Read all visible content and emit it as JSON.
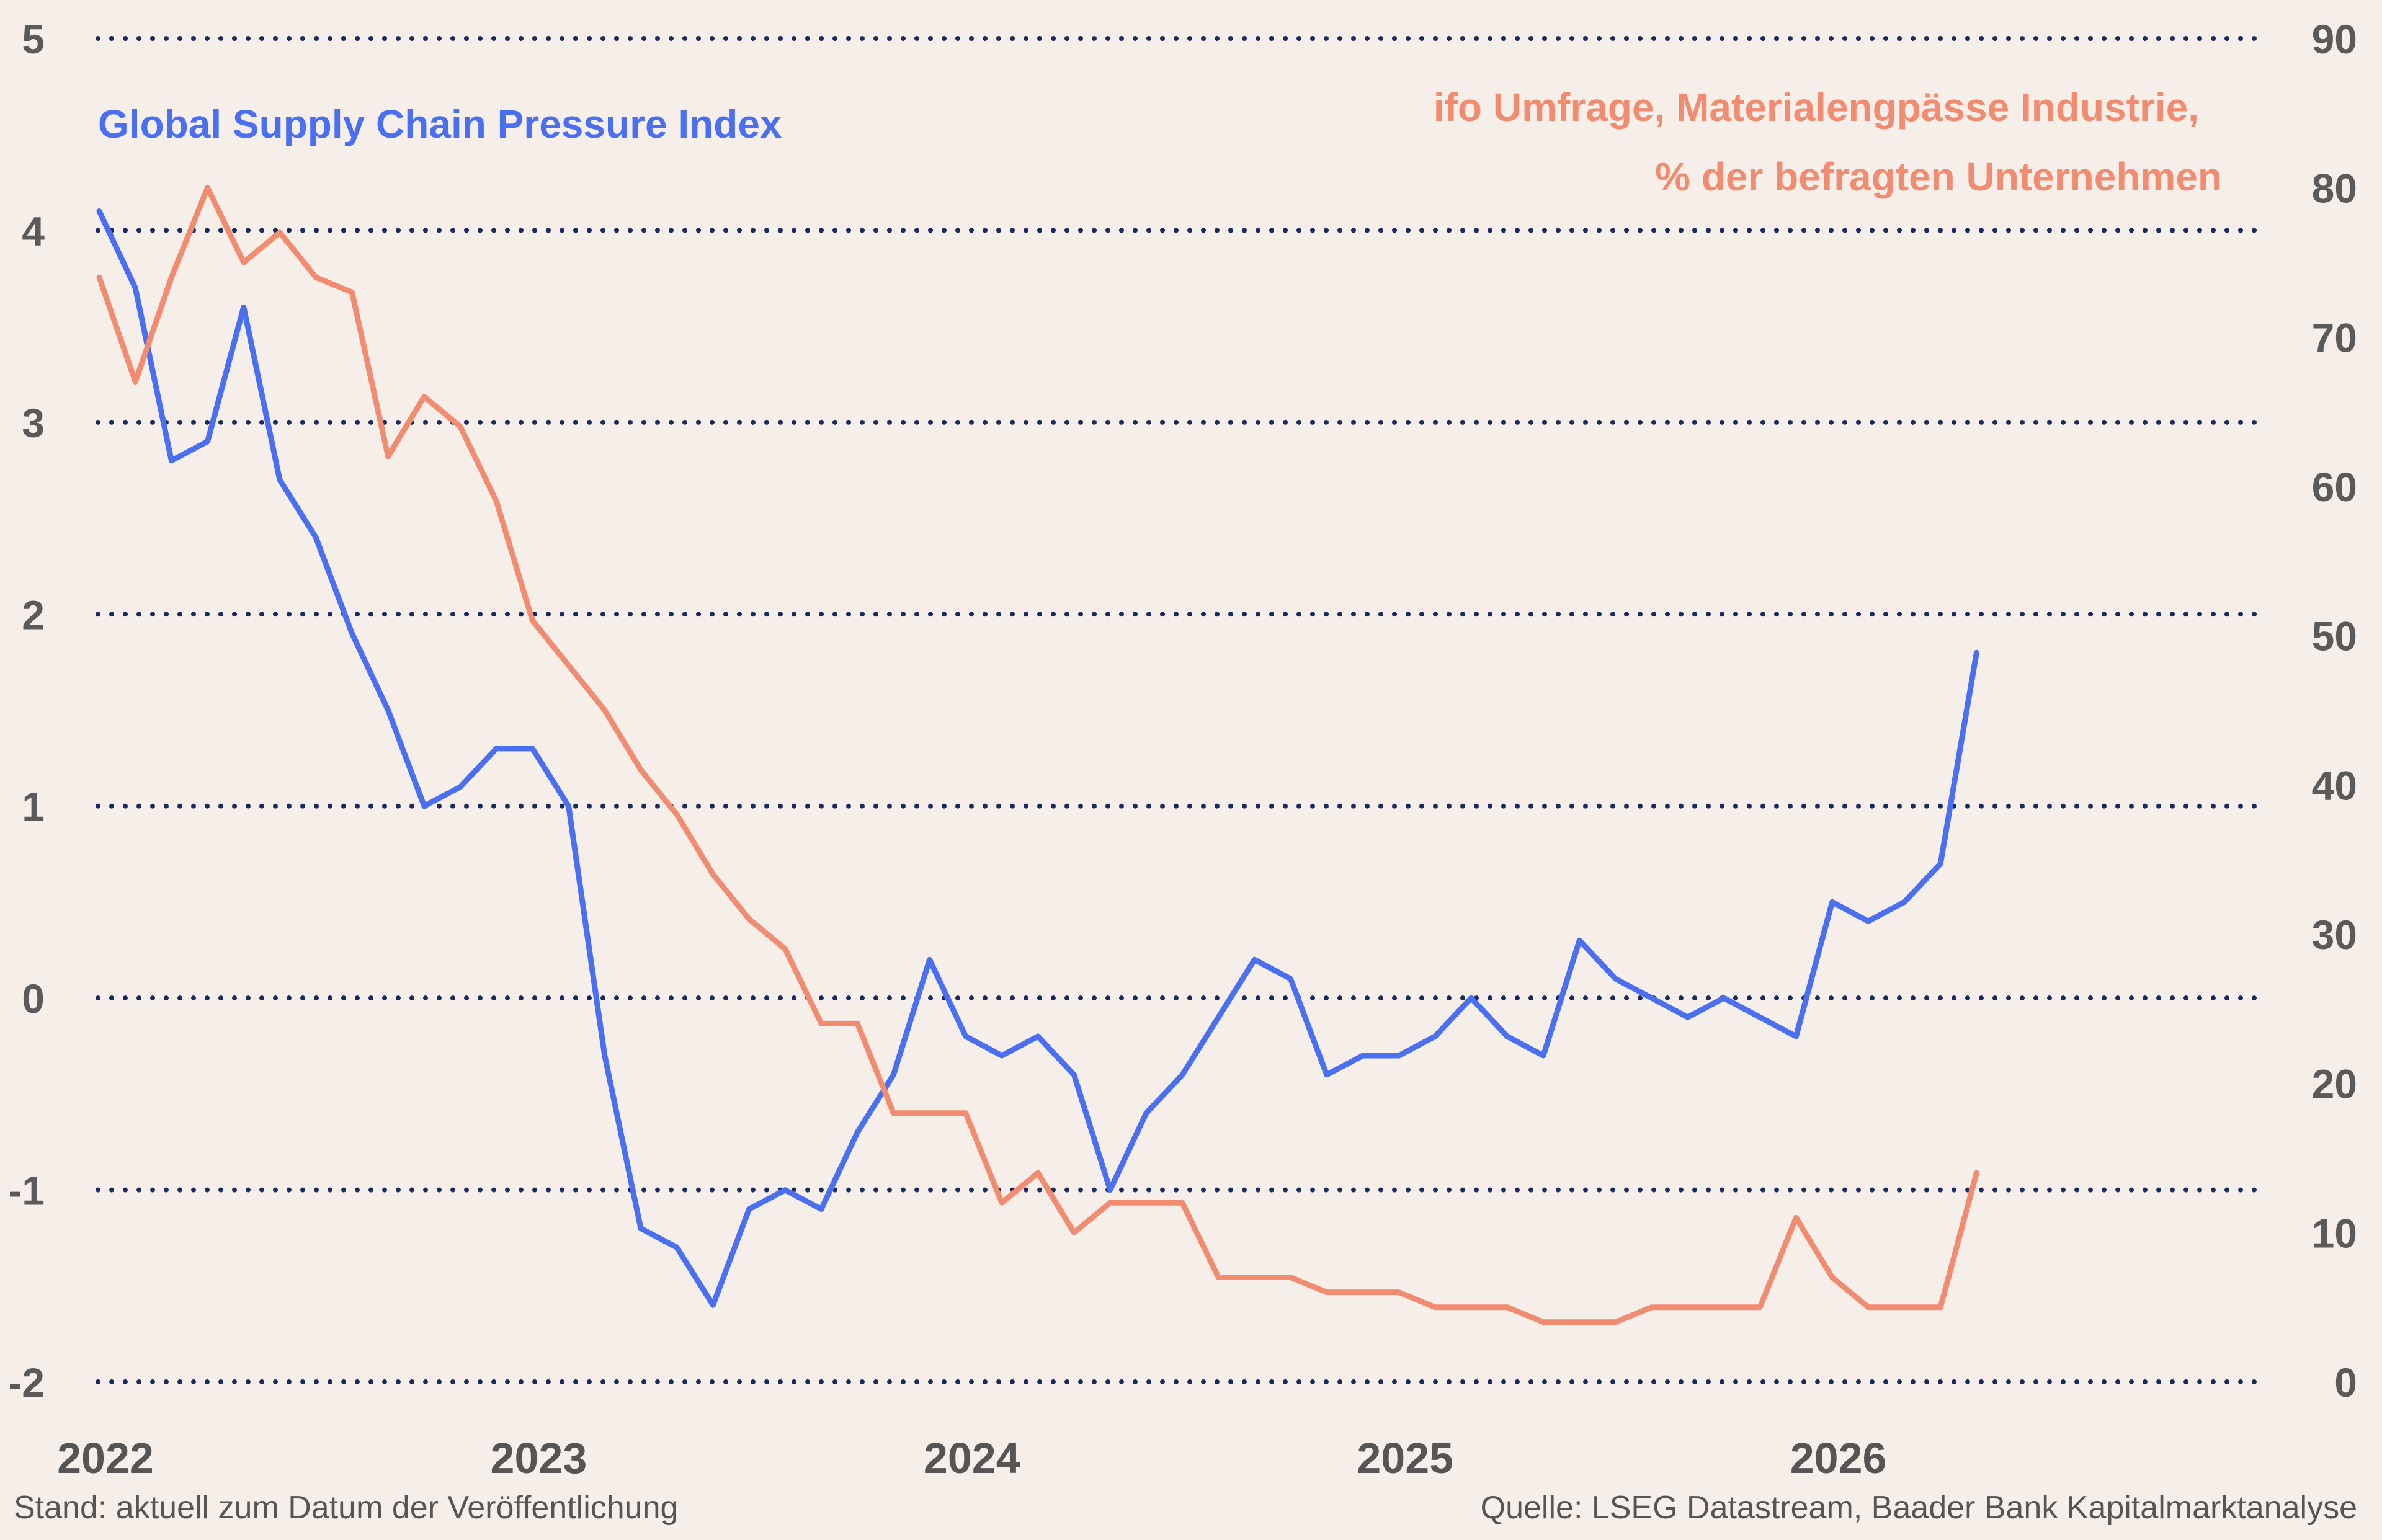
{
  "chart_data": {
    "type": "line",
    "x_start": "2022-01",
    "x_ticks": [
      "2022",
      "2023",
      "2024",
      "2025",
      "2026"
    ],
    "y_left": {
      "ticks": [
        "5",
        "4",
        "3",
        "2",
        "1",
        "0",
        "-1",
        "-2"
      ],
      "range": [
        -2,
        5
      ]
    },
    "y_right": {
      "ticks": [
        "90",
        "80",
        "70",
        "60",
        "50",
        "40",
        "30",
        "20",
        "10",
        "0"
      ],
      "range": [
        0,
        90
      ]
    },
    "grid": true,
    "series": [
      {
        "name": "Global Supply Chain Pressure Index",
        "axis": "left",
        "color": "#4a6ff0",
        "values": [
          4.1,
          3.7,
          2.8,
          2.9,
          3.6,
          2.7,
          2.4,
          1.9,
          1.5,
          1.0,
          1.1,
          1.3,
          1.3,
          1.0,
          -0.3,
          -1.2,
          -1.3,
          -1.6,
          -1.1,
          -1.0,
          -1.1,
          -0.7,
          -0.4,
          0.2,
          -0.2,
          -0.3,
          -0.2,
          -0.4,
          -1.0,
          -0.6,
          -0.4,
          -0.1,
          0.2,
          0.1,
          -0.4,
          -0.3,
          -0.3,
          -0.2,
          0.0,
          -0.2,
          -0.3,
          0.3,
          0.1,
          0.0,
          -0.1,
          0.0,
          -0.1,
          -0.2,
          0.5,
          0.4,
          0.5,
          0.7,
          1.8
        ]
      },
      {
        "name": "ifo Umfrage, Materialengpässe Industrie,\n% der befragten Unternehmen",
        "axis": "right",
        "color": "#f28c70",
        "values": [
          74,
          67,
          74,
          80,
          75,
          77,
          74,
          73,
          62,
          66,
          64,
          59,
          51,
          48,
          45,
          41,
          38,
          34,
          31,
          29,
          24,
          24,
          18,
          18,
          18,
          12,
          14,
          10,
          12,
          12,
          12,
          7,
          7,
          7,
          6,
          6,
          6,
          5,
          5,
          5,
          4,
          4,
          4,
          5,
          5,
          5,
          5,
          11,
          7,
          5,
          5,
          5,
          14
        ]
      }
    ]
  },
  "labels": {
    "gscpi": "Global Supply Chain Pressure Index",
    "ifo_line1": "ifo Umfrage, Materialengpässe Industrie,",
    "ifo_line2": "% der befragten Unternehmen"
  },
  "footer": {
    "left": "Stand: aktuell zum Datum der Veröffentlichung",
    "right": "Quelle: LSEG Datastream, Baader Bank Kapitalmarktanalyse"
  }
}
